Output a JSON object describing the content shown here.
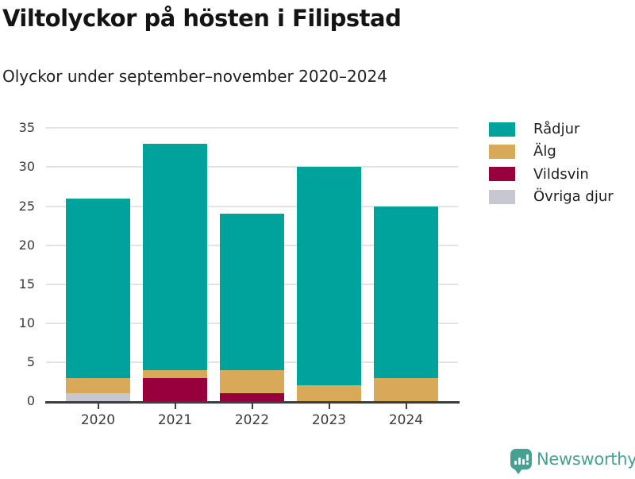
{
  "header": {
    "title": "Viltolyckor på hösten i Filipstad",
    "subtitle": "Olyckor under september–november 2020–2024"
  },
  "chart_data": {
    "type": "bar",
    "stacked": true,
    "title": "Viltolyckor på hösten i Filipstad",
    "subtitle": "Olyckor under september–november 2020–2024",
    "categories": [
      "2020",
      "2021",
      "2022",
      "2023",
      "2024"
    ],
    "series": [
      {
        "name": "Rådjur",
        "color": "#00a39b",
        "values": [
          23,
          29,
          20,
          28,
          22
        ]
      },
      {
        "name": "Älg",
        "color": "#d9a95a",
        "values": [
          2,
          1,
          3,
          2,
          3
        ]
      },
      {
        "name": "Vildsvin",
        "color": "#97003d",
        "values": [
          0,
          3,
          1,
          0,
          0
        ]
      },
      {
        "name": "Övriga djur",
        "color": "#c7c7d1",
        "values": [
          1,
          0,
          0,
          0,
          0
        ]
      }
    ],
    "totals": [
      26,
      33,
      24,
      30,
      25
    ],
    "xlabel": "",
    "ylabel": "",
    "ylim": [
      0,
      35
    ],
    "yticks": [
      0,
      5,
      10,
      15,
      20,
      25,
      30,
      35
    ],
    "grid": true,
    "legend_position": "right"
  },
  "footer": {
    "brand": "Newsworthy",
    "brand_color": "#47a193",
    "logo_icon": "bar-chart-speech-bubble"
  },
  "colors": {
    "background": "#ffffff",
    "axis": "#3d3d3d",
    "gridline": "#e3e3e6",
    "title_text": "#141414",
    "axis_text": "#3a3a3a"
  }
}
